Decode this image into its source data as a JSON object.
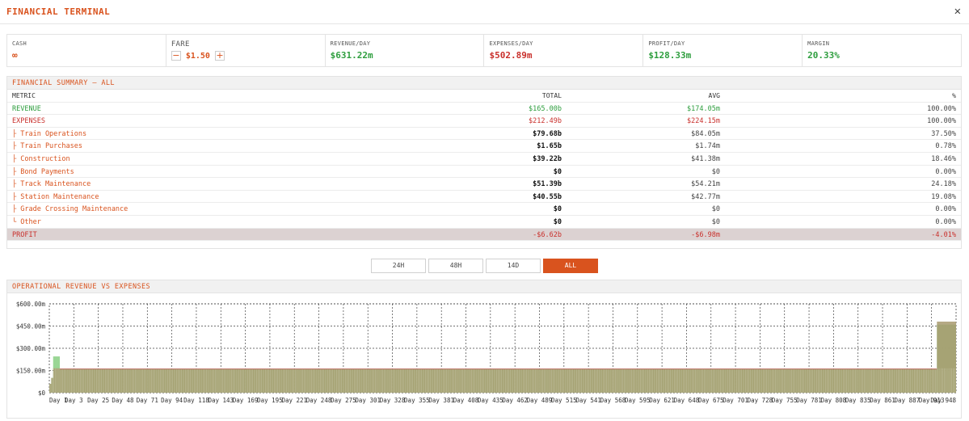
{
  "window": {
    "title": "FINANCIAL TERMINAL",
    "close_icon": "close-icon",
    "close_glyph": "✕"
  },
  "stats": {
    "cash": {
      "label": "CASH",
      "value": "∞"
    },
    "fare": {
      "label": "FARE",
      "value": "$1.50",
      "minus": "−",
      "plus": "+"
    },
    "revenue_day": {
      "label": "REVENUE/DAY",
      "value": "$631.22m"
    },
    "expenses_day": {
      "label": "EXPENSES/DAY",
      "value": "$502.89m"
    },
    "profit_day": {
      "label": "PROFIT/DAY",
      "value": "$128.33m"
    },
    "margin": {
      "label": "MARGIN",
      "value": "20.33%"
    }
  },
  "summary": {
    "title": "FINANCIAL SUMMARY — ALL",
    "headers": {
      "metric": "METRIC",
      "total": "TOTAL",
      "avg": "AVG",
      "pct": "%"
    },
    "revenue": {
      "metric": "REVENUE",
      "total": "$165.00b",
      "avg": "$174.05m",
      "pct": "100.00%"
    },
    "expenses": {
      "metric": "EXPENSES",
      "total": "$212.49b",
      "avg": "$224.15m",
      "pct": "100.00%"
    },
    "items": [
      {
        "metric": "├ Train Operations",
        "total": "$79.68b",
        "avg": "$84.05m",
        "pct": "37.50%"
      },
      {
        "metric": "├ Train Purchases",
        "total": "$1.65b",
        "avg": "$1.74m",
        "pct": "0.78%"
      },
      {
        "metric": "├ Construction",
        "total": "$39.22b",
        "avg": "$41.38m",
        "pct": "18.46%"
      },
      {
        "metric": "├ Bond Payments",
        "total": "$0",
        "avg": "$0",
        "pct": "0.00%"
      },
      {
        "metric": "├ Track Maintenance",
        "total": "$51.39b",
        "avg": "$54.21m",
        "pct": "24.18%"
      },
      {
        "metric": "├ Station Maintenance",
        "total": "$40.55b",
        "avg": "$42.77m",
        "pct": "19.08%"
      },
      {
        "metric": "├ Grade Crossing Maintenance",
        "total": "$0",
        "avg": "$0",
        "pct": "0.00%"
      },
      {
        "metric": "└ Other",
        "total": "$0",
        "avg": "$0",
        "pct": "0.00%"
      }
    ],
    "profit": {
      "metric": "PROFIT",
      "total": "-$6.62b",
      "avg": "-$6.98m",
      "pct": "-4.01%"
    }
  },
  "ranges": {
    "options": [
      "24H",
      "48H",
      "14D",
      "ALL"
    ],
    "selected": "ALL"
  },
  "chart": {
    "title": "OPERATIONAL REVENUE VS EXPENSES"
  },
  "colors": {
    "accent": "#d9531e",
    "revenue": "#2e9e3e",
    "expenses": "#c9302c",
    "bar_revenue": "#8fd18a",
    "bar_expense": "#a89a6e"
  },
  "chart_data": {
    "type": "bar",
    "xlabel": "",
    "ylabel": "",
    "ylim": [
      0,
      600000000
    ],
    "y_ticks": [
      "$0",
      "$150.00m",
      "$300.00m",
      "$450.00m",
      "$600.00m"
    ],
    "y_tick_values": [
      0,
      150000000,
      300000000,
      450000000,
      600000000
    ],
    "x_tick_labels": [
      "Day 1",
      "Day 3",
      "Day 25",
      "Day 48",
      "Day 71",
      "Day 94",
      "Day 118",
      "Day 143",
      "Day 169",
      "Day 195",
      "Day 221",
      "Day 248",
      "Day 275",
      "Day 301",
      "Day 328",
      "Day 355",
      "Day 381",
      "Day 408",
      "Day 435",
      "Day 462",
      "Day 489",
      "Day 515",
      "Day 541",
      "Day 568",
      "Day 595",
      "Day 621",
      "Day 648",
      "Day 675",
      "Day 701",
      "Day 728",
      "Day 755",
      "Day 781",
      "Day 808",
      "Day 835",
      "Day 861",
      "Day 887",
      "Day 913",
      "Day 948"
    ],
    "grid": true,
    "series": [
      {
        "name": "Revenue",
        "segments": [
          {
            "from_day": 1,
            "to_day": 3,
            "value": 60000000
          },
          {
            "from_day": 3,
            "to_day": 5,
            "value": 100000000
          },
          {
            "from_day": 5,
            "to_day": 12,
            "value": 245000000
          },
          {
            "from_day": 12,
            "to_day": 928,
            "value": 160000000
          },
          {
            "from_day": 928,
            "to_day": 948,
            "value": 460000000
          }
        ]
      },
      {
        "name": "Expenses",
        "segments": [
          {
            "from_day": 1,
            "to_day": 3,
            "value": 60000000
          },
          {
            "from_day": 3,
            "to_day": 5,
            "value": 100000000
          },
          {
            "from_day": 5,
            "to_day": 12,
            "value": 165000000
          },
          {
            "from_day": 12,
            "to_day": 928,
            "value": 160000000
          },
          {
            "from_day": 928,
            "to_day": 948,
            "value": 480000000
          }
        ]
      }
    ]
  }
}
